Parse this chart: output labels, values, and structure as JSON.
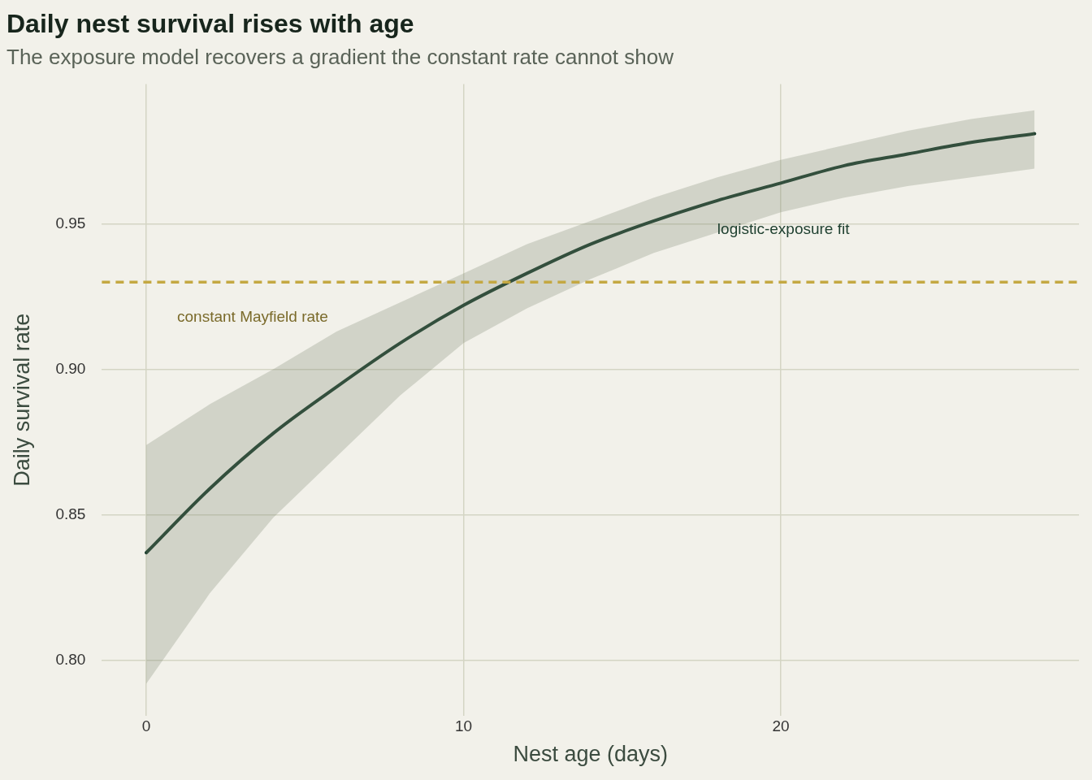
{
  "chart_data": {
    "type": "line",
    "title": "Daily nest survival rises with age",
    "subtitle": "The exposure model recovers a gradient the constant rate cannot show",
    "xlabel": "Nest age (days)",
    "ylabel": "Daily survival rate",
    "x": [
      0,
      2,
      4,
      6,
      8,
      10,
      12,
      14,
      16,
      18,
      20,
      22,
      24,
      26,
      28
    ],
    "series": [
      {
        "name": "logistic-exposure fit",
        "color": "#1f4030",
        "values": [
          0.837,
          0.859,
          0.878,
          0.894,
          0.909,
          0.922,
          0.933,
          0.943,
          0.951,
          0.958,
          0.964,
          0.97,
          0.974,
          0.978,
          0.981
        ],
        "lower": [
          0.792,
          0.823,
          0.849,
          0.87,
          0.891,
          0.909,
          0.921,
          0.931,
          0.94,
          0.947,
          0.954,
          0.959,
          0.963,
          0.966,
          0.969
        ],
        "upper": [
          0.874,
          0.888,
          0.9,
          0.913,
          0.923,
          0.933,
          0.943,
          0.951,
          0.959,
          0.966,
          0.972,
          0.977,
          0.982,
          0.986,
          0.989
        ]
      }
    ],
    "xlim": [
      -1.4,
      29.4
    ],
    "xticks": [
      0,
      10,
      20
    ],
    "ylim": [
      0.781,
      0.998
    ],
    "yticks": [
      {
        "value": 0.8,
        "label": "0.80"
      },
      {
        "value": 0.85,
        "label": "0.85"
      },
      {
        "value": 0.9,
        "label": "0.90"
      },
      {
        "value": 0.95,
        "label": "0.95"
      }
    ],
    "ref_lines": [
      {
        "axis": "y",
        "value": 0.93,
        "label": "constant Mayfield rate",
        "color": "#c4a842",
        "line_style": "dashed"
      }
    ],
    "grid": true,
    "legend": false,
    "marker": "none",
    "line_style": "solid"
  }
}
